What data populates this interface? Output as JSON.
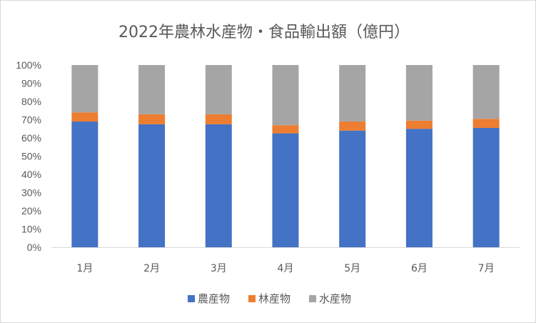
{
  "chart_data": {
    "type": "bar",
    "stacked": "percent",
    "title": "2022年農林水産物・食品輸出額（億円）",
    "categories": [
      "1月",
      "2月",
      "3月",
      "4月",
      "5月",
      "6月",
      "7月"
    ],
    "series": [
      {
        "name": "農産物",
        "color": "#4472c4",
        "values": [
          69,
          67.5,
          67.5,
          62.5,
          64,
          65,
          65.5
        ]
      },
      {
        "name": "林産物",
        "color": "#ed7d31",
        "values": [
          5,
          5.5,
          5.5,
          4.5,
          5,
          4.5,
          5
        ]
      },
      {
        "name": "水産物",
        "color": "#a5a5a5",
        "values": [
          26,
          27,
          27,
          33,
          31,
          30.5,
          29.5
        ]
      }
    ],
    "ylim": [
      0,
      100
    ],
    "yticks": [
      "0%",
      "10%",
      "20%",
      "30%",
      "40%",
      "50%",
      "60%",
      "70%",
      "80%",
      "90%",
      "100%"
    ],
    "grid": false,
    "legend": "bottom"
  }
}
